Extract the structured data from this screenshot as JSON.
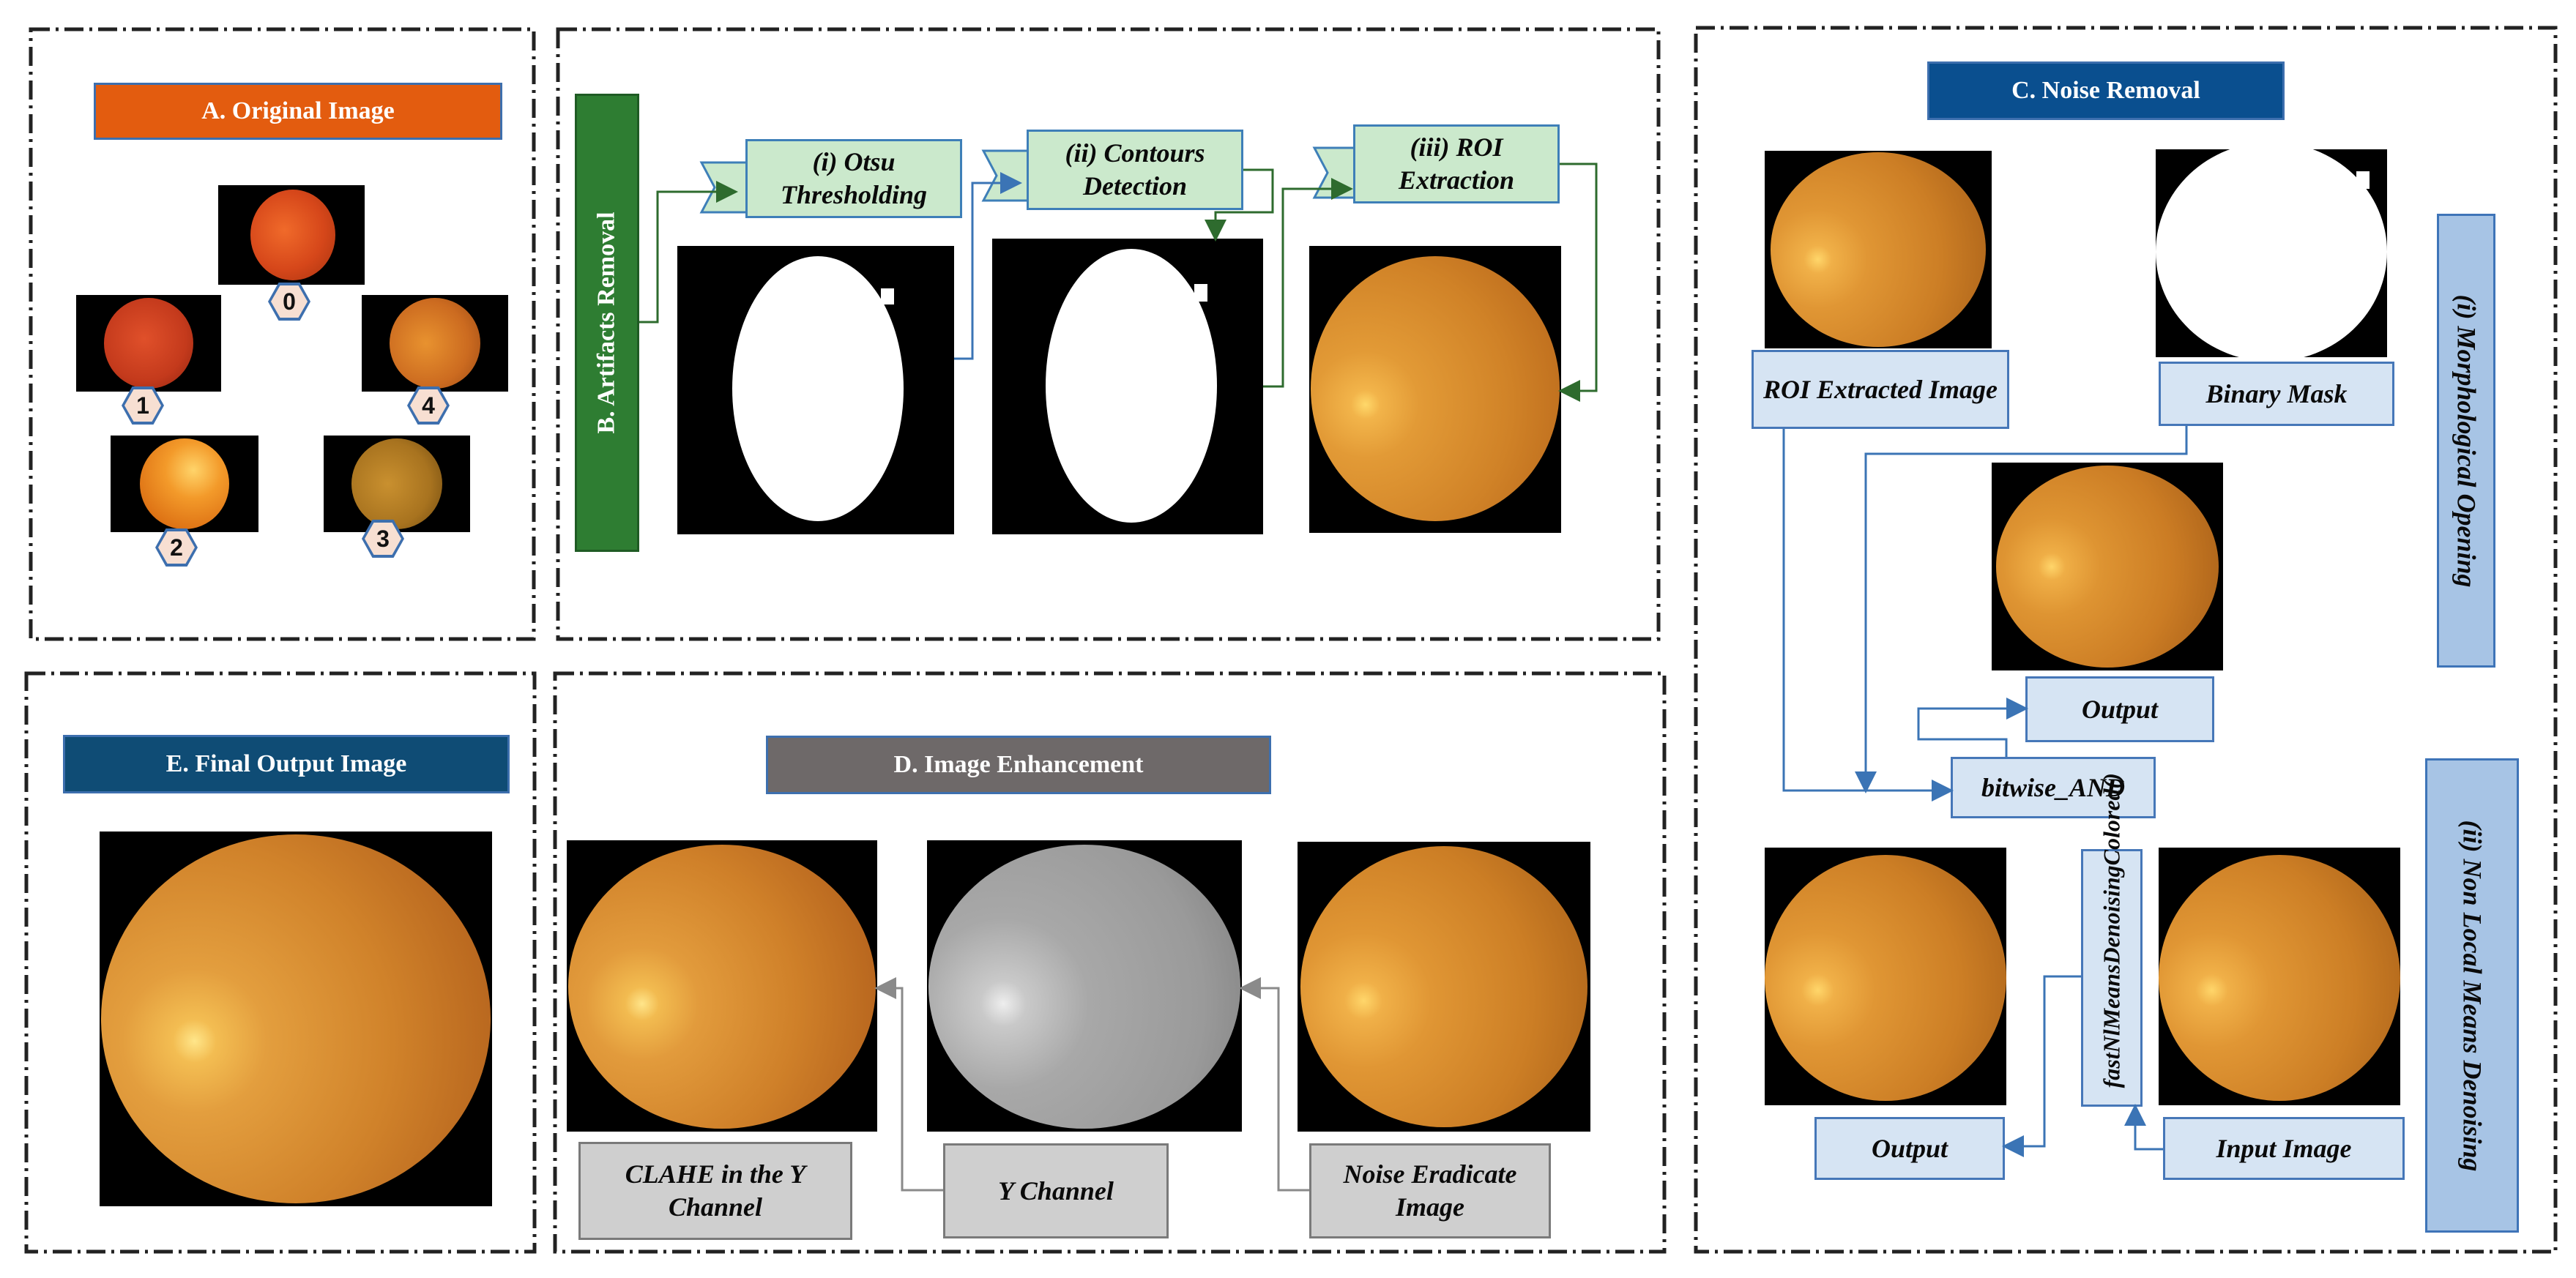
{
  "sections": {
    "original": "A. Original Image",
    "artifacts": "B. Artifacts Removal",
    "noise": "C. Noise Removal",
    "enhancement": "D. Image Enhancement",
    "final": "E. Final Output Image"
  },
  "grades": [
    "0",
    "1",
    "2",
    "3",
    "4"
  ],
  "artifacts_steps": [
    "(i) Otsu Thresholding",
    "(ii) Contours Detection",
    "(iii) ROI Extraction"
  ],
  "noise_removal": {
    "morph_title": "(i) Morphological Opening",
    "roi_label": "ROI Extracted Image",
    "mask_label": "Binary Mask",
    "output_label": "Output",
    "and_label": "bitwise_AND",
    "nlm_title": "(ii) Non Local Means Denoising",
    "nlm_function": "fastNlMeansDenoisingColored()",
    "nlm_output": "Output",
    "nlm_input": "Input Image"
  },
  "enhancement": {
    "clahe": "CLAHE in the Y Channel",
    "ychannel": "Y Channel",
    "noise_free": "Noise Eradicate Image"
  },
  "colors": {
    "orange": "#e35c0f",
    "green": "#2e7d32",
    "navy": "#0a4f8f",
    "slate": "#0f4c75",
    "gray": "#6e6969",
    "light_blue": "#a7c4e5",
    "arrow_green": "#2e6b2e",
    "arrow_blue": "#3b74b5",
    "arrow_gray": "#8a8a8a"
  }
}
